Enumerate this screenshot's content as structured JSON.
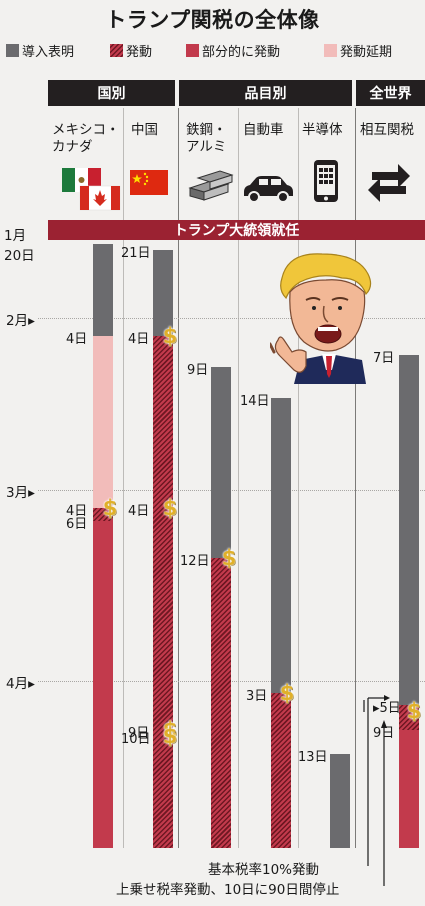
{
  "title": "トランプ関税の全体像",
  "legend": [
    {
      "label": "導入表明",
      "color": "#6b6b6e"
    },
    {
      "label": "発動",
      "color": "#c23a4c",
      "pattern": "hatch"
    },
    {
      "label": "部分的に発動",
      "color": "#c23a4c"
    },
    {
      "label": "発動延期",
      "color": "#f2bcba"
    }
  ],
  "headers": {
    "country": "国別",
    "product": "品目別",
    "global": "全世界"
  },
  "columns": [
    {
      "line1": "メキシコ・",
      "line2": "カナダ"
    },
    {
      "line1": "中国",
      "line2": ""
    },
    {
      "line1": "鉄鋼・",
      "line2": "アルミ"
    },
    {
      "line1": "自動車",
      "line2": ""
    },
    {
      "line1": "半導体",
      "line2": ""
    },
    {
      "line1": "相互関税",
      "line2": ""
    }
  ],
  "banner": "トランプ大統領就任",
  "axis": {
    "start_month": "1月",
    "start_day": "20日",
    "months": [
      "2月",
      "3月",
      "4月"
    ]
  },
  "chart_data": {
    "type": "bar",
    "orientation": "vertical-timeline",
    "axis_dates": [
      "1月20日",
      "2月",
      "3月",
      "4月"
    ],
    "series": [
      {
        "category": "メキシコ・カナダ",
        "segments": [
          {
            "status": "導入表明",
            "from": "1月20日",
            "to": "2月4日"
          },
          {
            "status": "発動延期",
            "from": "2月4日",
            "to": "3月4日"
          },
          {
            "status": "発動",
            "from": "3月4日",
            "to": "3月6日"
          },
          {
            "status": "部分的に発動",
            "from": "3月6日",
            "to": null
          }
        ],
        "labels": [
          "4日",
          "4日",
          "6日"
        ]
      },
      {
        "category": "中国",
        "segments": [
          {
            "status": "導入表明",
            "from": "1月21日",
            "to": "2月4日"
          },
          {
            "status": "発動",
            "from": "2月4日",
            "to": null
          }
        ],
        "labels": [
          "21日",
          "4日",
          "4日",
          "9日",
          "10日"
        ]
      },
      {
        "category": "鉄鋼・アルミ",
        "segments": [
          {
            "status": "導入表明",
            "from": "2月9日",
            "to": "3月12日"
          },
          {
            "status": "発動",
            "from": "3月12日",
            "to": null
          }
        ],
        "labels": [
          "9日",
          "12日"
        ]
      },
      {
        "category": "自動車",
        "segments": [
          {
            "status": "導入表明",
            "from": "2月14日",
            "to": "4月3日"
          },
          {
            "status": "発動",
            "from": "4月3日",
            "to": null
          }
        ],
        "labels": [
          "14日",
          "3日"
        ]
      },
      {
        "category": "半導体",
        "segments": [
          {
            "status": "導入表明",
            "from": "4月13日",
            "to": null
          }
        ],
        "labels": [
          "13日"
        ]
      },
      {
        "category": "相互関税",
        "segments": [
          {
            "status": "導入表明",
            "from": "2月7日",
            "to": "4月5日"
          },
          {
            "status": "発動",
            "from": "4月5日",
            "to": "4月9日"
          },
          {
            "status": "部分的に発動",
            "from": "4月9日",
            "to": null
          }
        ],
        "labels": [
          "7日",
          "5日",
          "9日"
        ]
      }
    ]
  },
  "notes": [
    "基本税率10%発動",
    "上乗せ税率発動、10日に90日間停止"
  ],
  "dollar_sign": "$"
}
